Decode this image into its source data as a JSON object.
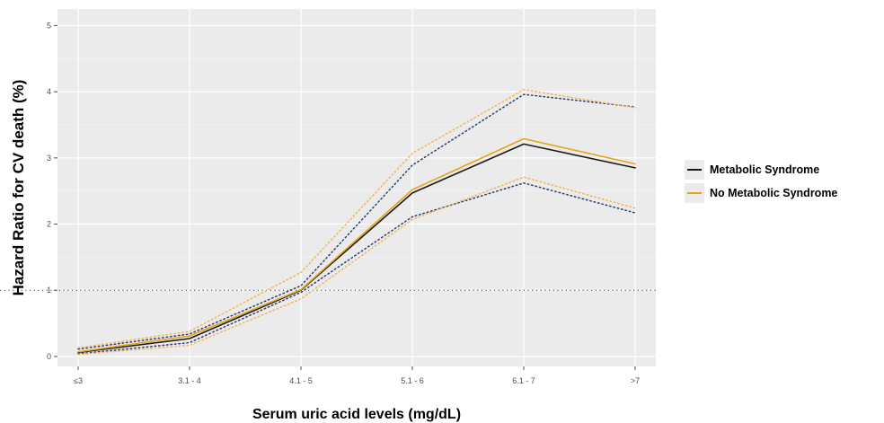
{
  "chart_data": {
    "type": "line",
    "title": "",
    "xlabel": "Serum uric acid levels (mg/dL)",
    "ylabel": "Hazard Ratio for CV death (%)",
    "categories": [
      "≤3",
      "3.1 - 4",
      "4.1 - 5",
      "5.1 - 6",
      "6.1 - 7",
      ">7"
    ],
    "ylim": [
      -0.15,
      5.25
    ],
    "yticks": [
      0,
      1,
      2,
      3,
      4,
      5
    ],
    "reference_line": 1,
    "grid": true,
    "legend_position": "right",
    "series": [
      {
        "name": "Metabolic Syndrome",
        "color": "#1a1a1a",
        "style": "solid",
        "values": [
          0.06,
          0.27,
          1.0,
          2.47,
          3.21,
          2.85
        ]
      },
      {
        "name": "No Metabolic Syndrome",
        "color": "#e8a317",
        "style": "solid",
        "values": [
          0.07,
          0.31,
          1.01,
          2.52,
          3.29,
          2.91
        ]
      },
      {
        "name": "",
        "color": "#2f3f6e",
        "style": "dotted",
        "values": [
          0.11,
          0.34,
          1.07,
          2.89,
          3.96,
          3.77
        ]
      },
      {
        "name": "",
        "color": "#2f3f6e",
        "style": "dotted",
        "values": [
          0.04,
          0.21,
          0.97,
          2.11,
          2.62,
          2.17
        ]
      },
      {
        "name": "",
        "color": "#f0b75a",
        "style": "dotted",
        "values": [
          0.13,
          0.38,
          1.27,
          3.07,
          4.03,
          3.76
        ]
      },
      {
        "name": "",
        "color": "#f0b75a",
        "style": "dotted",
        "values": [
          0.03,
          0.17,
          0.87,
          2.07,
          2.71,
          2.24
        ]
      }
    ]
  }
}
